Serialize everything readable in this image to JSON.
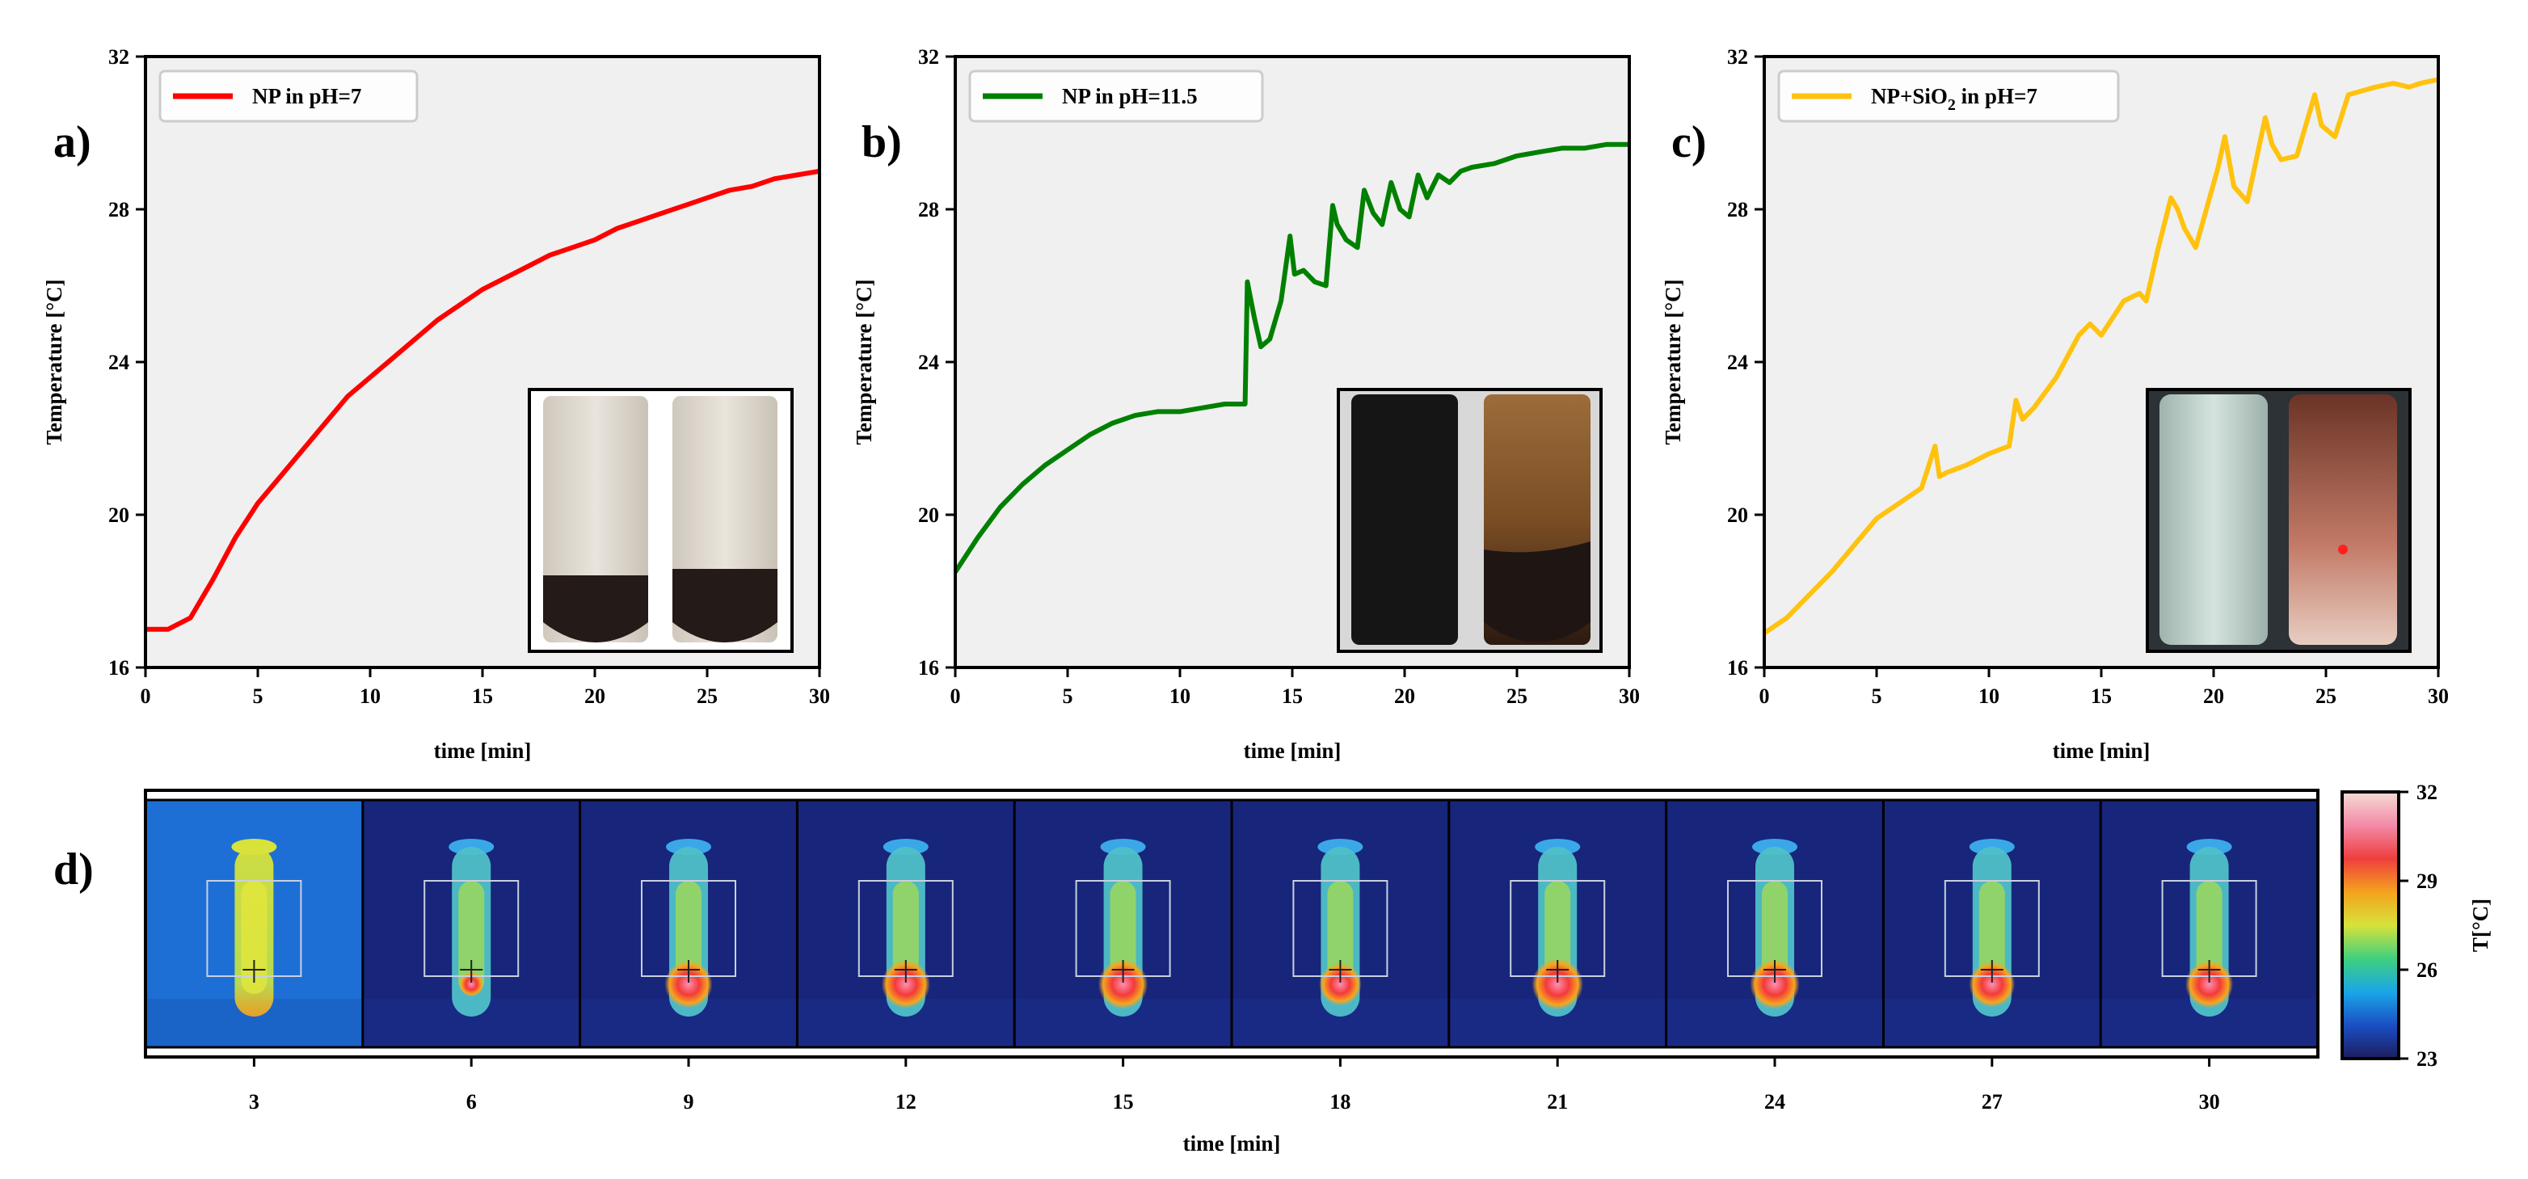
{
  "panel_labels": [
    "a)",
    "b)",
    "c)",
    "d)"
  ],
  "chart_data": [
    {
      "type": "line",
      "panel": "a)",
      "xlabel": "time [min]",
      "ylabel": "Temperature [°C]",
      "xlim": [
        0,
        30
      ],
      "ylim": [
        16,
        32
      ],
      "xticks": [
        0,
        5,
        10,
        15,
        20,
        25,
        30
      ],
      "yticks": [
        16,
        20,
        24,
        28,
        32
      ],
      "legend": "top-left",
      "series": [
        {
          "name": "NP in pH=7",
          "color": "#ff0000",
          "x": [
            0,
            1,
            2,
            3,
            4,
            5,
            6,
            7,
            8,
            9,
            10,
            11,
            12,
            13,
            14,
            15,
            16,
            17,
            18,
            19,
            20,
            21,
            22,
            23,
            24,
            25,
            26,
            27,
            28,
            29,
            30
          ],
          "y": [
            17.0,
            17.0,
            17.3,
            18.3,
            19.4,
            20.3,
            21.0,
            21.7,
            22.4,
            23.1,
            23.6,
            24.1,
            24.6,
            25.1,
            25.5,
            25.9,
            26.2,
            26.5,
            26.8,
            27.0,
            27.2,
            27.5,
            27.7,
            27.9,
            28.1,
            28.3,
            28.5,
            28.6,
            28.8,
            28.9,
            29.0
          ]
        }
      ],
      "inset": "photo: two vials, dark sediment at bottom"
    },
    {
      "type": "line",
      "panel": "b)",
      "xlabel": "time [min]",
      "ylabel": "Temperature [°C]",
      "xlim": [
        0,
        30
      ],
      "ylim": [
        16,
        32
      ],
      "xticks": [
        0,
        5,
        10,
        15,
        20,
        25,
        30
      ],
      "yticks": [
        16,
        20,
        24,
        28,
        32
      ],
      "legend": "top-left",
      "series": [
        {
          "name": "NP in pH=11.5",
          "color": "#008000",
          "x": [
            0,
            1,
            2,
            3,
            4,
            5,
            6,
            7,
            8,
            9,
            10,
            11,
            12,
            12.9,
            13.0,
            13.3,
            13.6,
            14,
            14.5,
            14.9,
            15.1,
            15.5,
            16,
            16.5,
            16.8,
            17.0,
            17.4,
            17.9,
            18.2,
            18.6,
            19.0,
            19.4,
            19.8,
            20.2,
            20.6,
            21,
            21.5,
            22,
            22.5,
            23,
            24,
            25,
            26,
            27,
            28,
            29,
            30
          ],
          "y": [
            18.5,
            19.4,
            20.2,
            20.8,
            21.3,
            21.7,
            22.1,
            22.4,
            22.6,
            22.7,
            22.7,
            22.8,
            22.9,
            22.9,
            26.1,
            25.2,
            24.4,
            24.6,
            25.6,
            27.3,
            26.3,
            26.4,
            26.1,
            26.0,
            28.1,
            27.6,
            27.2,
            27.0,
            28.5,
            27.9,
            27.6,
            28.7,
            28.0,
            27.8,
            28.9,
            28.3,
            28.9,
            28.7,
            29.0,
            29.1,
            29.2,
            29.4,
            29.5,
            29.6,
            29.6,
            29.7,
            29.7
          ]
        }
      ],
      "inset": "photo: dark vial and brown vial"
    },
    {
      "type": "line",
      "panel": "c)",
      "xlabel": "time [min]",
      "ylabel": "Temperature [°C]",
      "xlim": [
        0,
        30
      ],
      "ylim": [
        16,
        32
      ],
      "xticks": [
        0,
        5,
        10,
        15,
        20,
        25,
        30
      ],
      "yticks": [
        16,
        20,
        24,
        28,
        32
      ],
      "legend": "top-left",
      "series": [
        {
          "name": "NP+SiO",
          "name_subscript": "2",
          "name_suffix": " in pH=7",
          "color": "#ffc20e",
          "x": [
            0,
            1,
            2,
            3,
            4,
            5,
            6,
            7,
            7.6,
            7.8,
            8.1,
            9,
            10,
            10.9,
            11.2,
            11.5,
            12,
            13,
            14,
            14.5,
            15,
            16,
            16.7,
            17,
            17.5,
            18.1,
            18.4,
            18.7,
            19.2,
            20.2,
            20.5,
            20.9,
            21.5,
            22.3,
            22.6,
            23.0,
            23.7,
            24.5,
            24.8,
            25.4,
            26,
            26.6,
            27.2,
            28,
            28.7,
            29.2,
            30
          ],
          "y": [
            16.9,
            17.3,
            17.9,
            18.5,
            19.2,
            19.9,
            20.3,
            20.7,
            21.8,
            21.0,
            21.1,
            21.3,
            21.6,
            21.8,
            23.0,
            22.5,
            22.8,
            23.6,
            24.7,
            25.0,
            24.7,
            25.6,
            25.8,
            25.6,
            26.9,
            28.3,
            28.0,
            27.5,
            27.0,
            29.1,
            29.9,
            28.6,
            28.2,
            30.4,
            29.7,
            29.3,
            29.4,
            31.0,
            30.2,
            29.9,
            31.0,
            31.1,
            31.2,
            31.3,
            31.2,
            31.3,
            31.4
          ]
        }
      ],
      "inset": "photo: pale greenish vial and reddish vial"
    },
    {
      "type": "heatmap",
      "panel": "d)",
      "description_kind": "thermal image sequence",
      "xlabel": "time [min]",
      "categories": [
        "3",
        "6",
        "9",
        "12",
        "15",
        "18",
        "21",
        "24",
        "27",
        "30"
      ],
      "hotspot_intensity": [
        0.0,
        0.15,
        0.8,
        0.82,
        0.85,
        0.65,
        0.9,
        0.85,
        0.75,
        0.8
      ],
      "colorbar": {
        "label": "T[°C]",
        "ticks": [
          "23",
          "26",
          "29",
          "32"
        ],
        "range": [
          23,
          32
        ],
        "colors": [
          "#1c1d5e",
          "#1a4fc4",
          "#1aa6e8",
          "#3fd07f",
          "#d8e23a",
          "#f4a21e",
          "#ee3e3e",
          "#f38aa8",
          "#f4dcd4"
        ]
      }
    }
  ]
}
